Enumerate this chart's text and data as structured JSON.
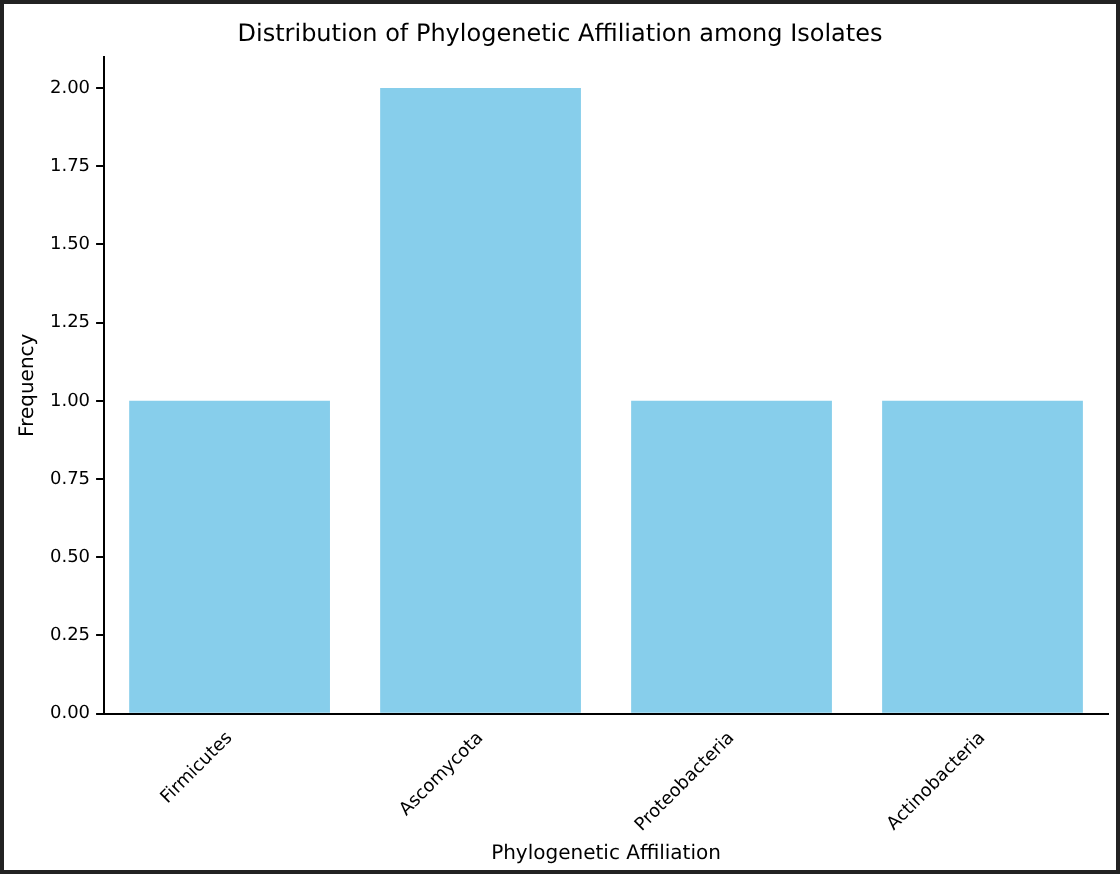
{
  "chart_data": {
    "type": "bar",
    "title": "Distribution of Phylogenetic Affiliation among Isolates",
    "xlabel": "Phylogenetic Affiliation",
    "ylabel": "Frequency",
    "categories": [
      "Firmicutes",
      "Ascomycota",
      "Proteobacteria",
      "Actinobacteria"
    ],
    "values": [
      1,
      2,
      1,
      1
    ],
    "color": "#87ceeb",
    "ylim": [
      0,
      2.1
    ],
    "yticks": [
      {
        "value": 0,
        "label": "0.00"
      },
      {
        "value": 0.25,
        "label": "0.25"
      },
      {
        "value": 0.5,
        "label": "0.50"
      },
      {
        "value": 0.75,
        "label": "0.75"
      },
      {
        "value": 1,
        "label": "1.00"
      },
      {
        "value": 1.25,
        "label": "1.25"
      },
      {
        "value": 1.5,
        "label": "1.50"
      },
      {
        "value": 1.75,
        "label": "1.75"
      },
      {
        "value": 2,
        "label": "2.00"
      }
    ],
    "grid": false,
    "legend": false
  }
}
